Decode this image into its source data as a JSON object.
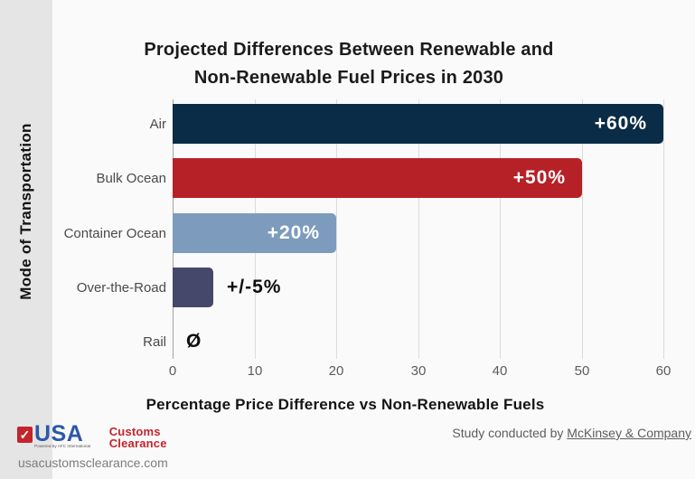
{
  "page": {
    "background": "#fafafa",
    "sidebar_color": "#e5e5e5"
  },
  "chart_data": {
    "type": "bar",
    "orientation": "horizontal",
    "title": "Projected Differences Between Renewable and Non-Renewable Fuel Prices in 2030",
    "title_line1": "Projected Differences Between Renewable and",
    "title_line2": "Non-Renewable Fuel Prices in 2030",
    "xlabel": "Percentage Price Difference vs Non-Renewable Fuels",
    "ylabel": "Mode of Transportation",
    "categories": [
      "Air",
      "Bulk Ocean",
      "Container Ocean",
      "Over-the-Road",
      "Rail"
    ],
    "values": [
      60,
      50,
      20,
      5,
      0
    ],
    "bar_labels": [
      "+60%",
      "+50%",
      "+20%",
      "+/-5%",
      "Ø"
    ],
    "label_placement": [
      "inside",
      "inside",
      "inside",
      "outside",
      "outside"
    ],
    "bar_colors": [
      "#0a2c46",
      "#b62127",
      "#7d9cbd",
      "#45486b",
      null
    ],
    "xlim": [
      0,
      60
    ],
    "xticks": [
      0,
      10,
      20,
      30,
      40,
      50,
      60
    ],
    "grid": true,
    "legend": false
  },
  "footer": {
    "logo": {
      "check_icon": "✓",
      "usa": "USA",
      "customs": "Customs",
      "clearance": "Clearance",
      "powered_by": "Powered by AFC International",
      "blue": "#2b58a7",
      "red": "#c4242b"
    },
    "website": "usacustomsclearance.com",
    "attribution": {
      "prefix": "Study conducted by ",
      "link": "McKinsey & Company"
    }
  }
}
